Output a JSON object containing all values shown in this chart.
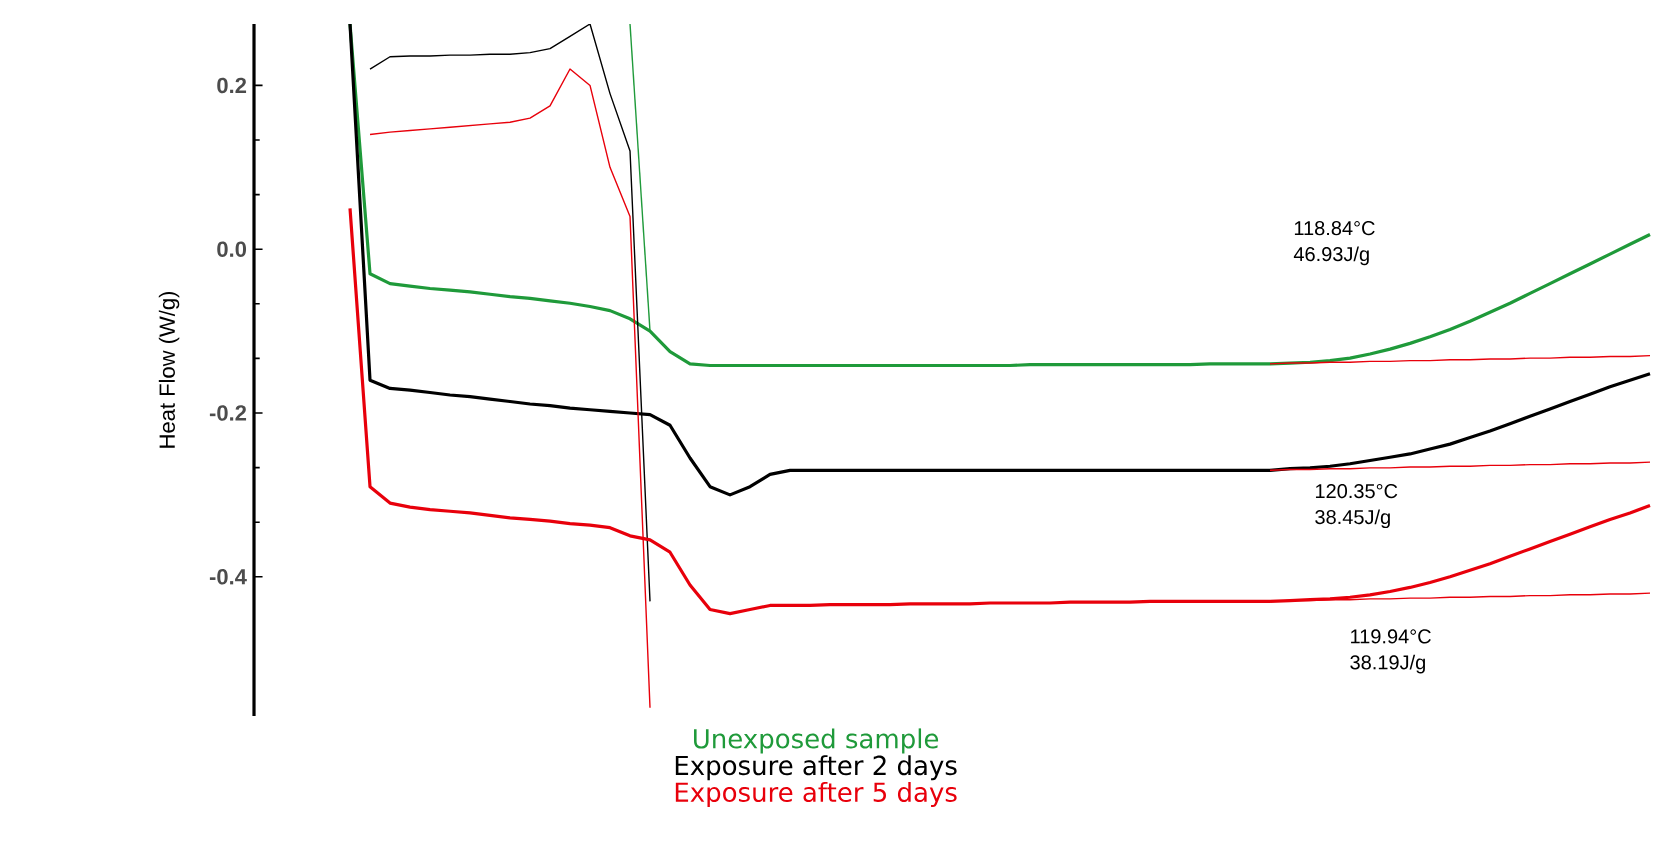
{
  "chart_data": {
    "type": "line",
    "ylabel": "Heat Flow (W/g)",
    "categories": [
      null,
      null,
      null,
      null,
      null,
      null,
      null,
      null,
      null,
      null,
      null,
      null,
      null,
      null,
      null,
      null,
      null,
      null,
      null,
      null,
      null,
      null,
      null,
      null,
      null,
      null,
      null,
      null,
      null,
      null,
      null,
      null,
      null,
      null,
      null,
      null,
      null,
      null,
      null,
      null,
      null,
      null,
      null,
      null,
      null,
      null,
      null,
      null,
      null,
      null,
      null,
      null,
      null,
      null,
      null,
      null,
      null,
      null,
      null,
      null,
      null,
      null,
      null,
      null,
      null,
      null
    ],
    "ylim": [
      -0.57,
      0.275
    ],
    "yticks": [
      0.2,
      {
        "value": 0,
        "label": "0.0"
      },
      -0.2,
      -0.4
    ],
    "tick_labels": "y",
    "legend": "bottom",
    "grid": false,
    "series": [
      {
        "name": "Unexposed sample",
        "color": "#1f9a3a",
        "values": [
          0.275,
          -0.03,
          -0.042,
          -0.045,
          -0.048,
          -0.05,
          -0.052,
          -0.055,
          -0.058,
          -0.06,
          -0.063,
          -0.066,
          -0.07,
          -0.075,
          -0.085,
          -0.1,
          -0.125,
          -0.14,
          -0.142,
          -0.142,
          -0.142,
          -0.142,
          -0.142,
          -0.142,
          -0.142,
          -0.142,
          -0.142,
          -0.142,
          -0.142,
          -0.142,
          -0.142,
          -0.142,
          -0.142,
          -0.142,
          -0.141,
          -0.141,
          -0.141,
          -0.141,
          -0.141,
          -0.141,
          -0.141,
          -0.141,
          -0.141,
          -0.14,
          -0.14,
          -0.14,
          -0.14,
          -0.139,
          -0.138,
          -0.136,
          -0.133,
          -0.128,
          -0.122,
          -0.115,
          -0.107,
          -0.098,
          -0.088,
          -0.077,
          -0.066,
          -0.054,
          -0.042,
          -0.03,
          -0.018,
          -0.006,
          0.006,
          0.018
        ]
      },
      {
        "color": "#1f9a3a",
        "values": [
          null,
          null,
          null,
          null,
          null,
          null,
          null,
          null,
          null,
          null,
          null,
          null,
          null,
          null,
          0.275,
          -0.1,
          null,
          null,
          null,
          null,
          null,
          null,
          null,
          null,
          null,
          null,
          null,
          null,
          null,
          null,
          null,
          null,
          null,
          null,
          null,
          null,
          null,
          null,
          null,
          null,
          null,
          null,
          null,
          null,
          null,
          null,
          null,
          null,
          null,
          null,
          null,
          null,
          null,
          null,
          null,
          null,
          null,
          null,
          null,
          null,
          null,
          null,
          null,
          null,
          null,
          null
        ]
      },
      {
        "name": "Exposure after 2 days",
        "color": "#000000",
        "values": [
          0.275,
          -0.16,
          -0.17,
          -0.172,
          -0.175,
          -0.178,
          -0.18,
          -0.183,
          -0.186,
          -0.189,
          -0.191,
          -0.194,
          -0.196,
          -0.198,
          -0.2,
          -0.202,
          -0.215,
          -0.255,
          -0.29,
          -0.3,
          -0.29,
          -0.275,
          -0.27,
          -0.27,
          -0.27,
          -0.27,
          -0.27,
          -0.27,
          -0.27,
          -0.27,
          -0.27,
          -0.27,
          -0.27,
          -0.27,
          -0.27,
          -0.27,
          -0.27,
          -0.27,
          -0.27,
          -0.27,
          -0.27,
          -0.27,
          -0.27,
          -0.27,
          -0.27,
          -0.27,
          -0.27,
          -0.268,
          -0.267,
          -0.265,
          -0.262,
          -0.258,
          -0.254,
          -0.25,
          -0.244,
          -0.238,
          -0.23,
          -0.222,
          -0.213,
          -0.204,
          -0.195,
          -0.186,
          -0.177,
          -0.168,
          -0.16,
          -0.152
        ]
      },
      {
        "color": "#000000",
        "values": [
          null,
          0.22,
          0.235,
          0.236,
          0.236,
          0.237,
          0.237,
          0.238,
          0.238,
          0.24,
          0.245,
          0.26,
          0.275,
          0.19,
          0.12,
          -0.43,
          null,
          null,
          null,
          null,
          null,
          null,
          null,
          null,
          null,
          null,
          null,
          null,
          null,
          null,
          null,
          null,
          null,
          null,
          null,
          null,
          null,
          null,
          null,
          null,
          null,
          null,
          null,
          null,
          null,
          null,
          null,
          null,
          null,
          null,
          null,
          null,
          null,
          null,
          null,
          null,
          null,
          null,
          null,
          null,
          null,
          null,
          null,
          null,
          null,
          null
        ]
      },
      {
        "name": "Exposure after 5 days",
        "color": "#e8000b",
        "values": [
          0.05,
          -0.29,
          -0.31,
          -0.315,
          -0.318,
          -0.32,
          -0.322,
          -0.325,
          -0.328,
          -0.33,
          -0.332,
          -0.335,
          -0.337,
          -0.34,
          -0.35,
          -0.355,
          -0.37,
          -0.41,
          -0.44,
          -0.445,
          -0.44,
          -0.435,
          -0.435,
          -0.435,
          -0.434,
          -0.434,
          -0.434,
          -0.434,
          -0.433,
          -0.433,
          -0.433,
          -0.433,
          -0.432,
          -0.432,
          -0.432,
          -0.432,
          -0.431,
          -0.431,
          -0.431,
          -0.431,
          -0.43,
          -0.43,
          -0.43,
          -0.43,
          -0.43,
          -0.43,
          -0.43,
          -0.429,
          -0.428,
          -0.427,
          -0.425,
          -0.422,
          -0.418,
          -0.413,
          -0.407,
          -0.4,
          -0.392,
          -0.384,
          -0.375,
          -0.366,
          -0.357,
          -0.348,
          -0.339,
          -0.33,
          -0.322,
          -0.313
        ]
      },
      {
        "color": "#e8000b",
        "values": [
          null,
          0.14,
          0.143,
          0.145,
          0.147,
          0.149,
          0.151,
          0.153,
          0.155,
          0.16,
          0.175,
          0.22,
          0.2,
          0.1,
          0.04,
          -0.56,
          null,
          null,
          null,
          null,
          null,
          null,
          null,
          null,
          null,
          null,
          null,
          null,
          null,
          null,
          null,
          null,
          null,
          null,
          null,
          null,
          null,
          null,
          null,
          null,
          null,
          null,
          null,
          null,
          null,
          null,
          null,
          null,
          null,
          null,
          null,
          null,
          null,
          null,
          null,
          null,
          null,
          null,
          null,
          null,
          null,
          null,
          null,
          null,
          null,
          null
        ]
      },
      {
        "color": "#e8000b",
        "values": [
          null,
          null,
          null,
          null,
          null,
          null,
          null,
          null,
          null,
          null,
          null,
          null,
          null,
          null,
          null,
          null,
          null,
          null,
          null,
          null,
          null,
          null,
          null,
          null,
          null,
          null,
          null,
          null,
          null,
          null,
          null,
          null,
          null,
          null,
          null,
          null,
          null,
          null,
          null,
          null,
          null,
          null,
          null,
          null,
          null,
          null,
          -0.14,
          -0.139,
          -0.139,
          -0.138,
          -0.138,
          -0.137,
          -0.137,
          -0.136,
          -0.136,
          -0.135,
          -0.135,
          -0.134,
          -0.134,
          -0.133,
          -0.133,
          -0.132,
          -0.132,
          -0.131,
          -0.131,
          -0.13
        ]
      },
      {
        "color": "#e8000b",
        "values": [
          null,
          null,
          null,
          null,
          null,
          null,
          null,
          null,
          null,
          null,
          null,
          null,
          null,
          null,
          null,
          null,
          null,
          null,
          null,
          null,
          null,
          null,
          null,
          null,
          null,
          null,
          null,
          null,
          null,
          null,
          null,
          null,
          null,
          null,
          null,
          null,
          null,
          null,
          null,
          null,
          null,
          null,
          null,
          null,
          null,
          null,
          -0.27,
          -0.269,
          -0.269,
          -0.268,
          -0.268,
          -0.267,
          -0.267,
          -0.266,
          -0.266,
          -0.265,
          -0.265,
          -0.264,
          -0.264,
          -0.263,
          -0.263,
          -0.262,
          -0.262,
          -0.261,
          -0.261,
          -0.26
        ]
      },
      {
        "color": "#e8000b",
        "values": [
          null,
          null,
          null,
          null,
          null,
          null,
          null,
          null,
          null,
          null,
          null,
          null,
          null,
          null,
          null,
          null,
          null,
          null,
          null,
          null,
          null,
          null,
          null,
          null,
          null,
          null,
          null,
          null,
          null,
          null,
          null,
          null,
          null,
          null,
          null,
          null,
          null,
          null,
          null,
          null,
          null,
          null,
          null,
          null,
          null,
          null,
          -0.43,
          -0.429,
          -0.429,
          -0.428,
          -0.428,
          -0.427,
          -0.427,
          -0.426,
          -0.426,
          -0.425,
          -0.425,
          -0.424,
          -0.424,
          -0.423,
          -0.423,
          -0.422,
          -0.422,
          -0.421,
          -0.421,
          -0.42
        ]
      }
    ],
    "annotations": [
      "118.84°C",
      "46.93J/g",
      "120.35°C",
      "38.45J/g",
      "119.94°C",
      "38.19J/g"
    ]
  }
}
